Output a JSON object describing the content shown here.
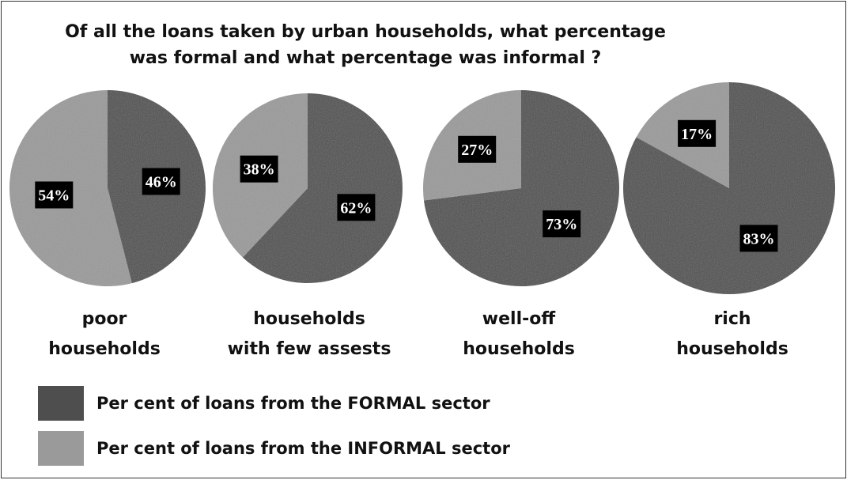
{
  "chart_data": {
    "type": "pie",
    "title_lines": [
      "Of all the loans taken by urban households, what percentage",
      "was formal and what percentage was informal ?"
    ],
    "pies": [
      {
        "label_lines": [
          "poor",
          "households"
        ],
        "slices": [
          {
            "series": "formal",
            "value": 46,
            "label": "46%"
          },
          {
            "series": "informal",
            "value": 54,
            "label": "54%"
          }
        ]
      },
      {
        "label_lines": [
          "households",
          "with few assests"
        ],
        "slices": [
          {
            "series": "formal",
            "value": 62,
            "label": "62%"
          },
          {
            "series": "informal",
            "value": 38,
            "label": "38%"
          }
        ]
      },
      {
        "label_lines": [
          "well-off",
          "households"
        ],
        "slices": [
          {
            "series": "formal",
            "value": 73,
            "label": "73%"
          },
          {
            "series": "informal",
            "value": 27,
            "label": "27%"
          }
        ]
      },
      {
        "label_lines": [
          "rich",
          "households"
        ],
        "slices": [
          {
            "series": "formal",
            "value": 83,
            "label": "83%"
          },
          {
            "series": "informal",
            "value": 17,
            "label": "17%"
          }
        ]
      }
    ],
    "legend": [
      {
        "series": "formal",
        "label": "Per cent of loans from the FORMAL sector",
        "color": "#4e4e4e"
      },
      {
        "series": "informal",
        "label": "Per cent of loans from the INFORMAL sector",
        "color": "#9a9a9a"
      }
    ],
    "legend_position": "bottom-left",
    "label_box_color": "#000000",
    "label_text_color": "#ffffff"
  }
}
